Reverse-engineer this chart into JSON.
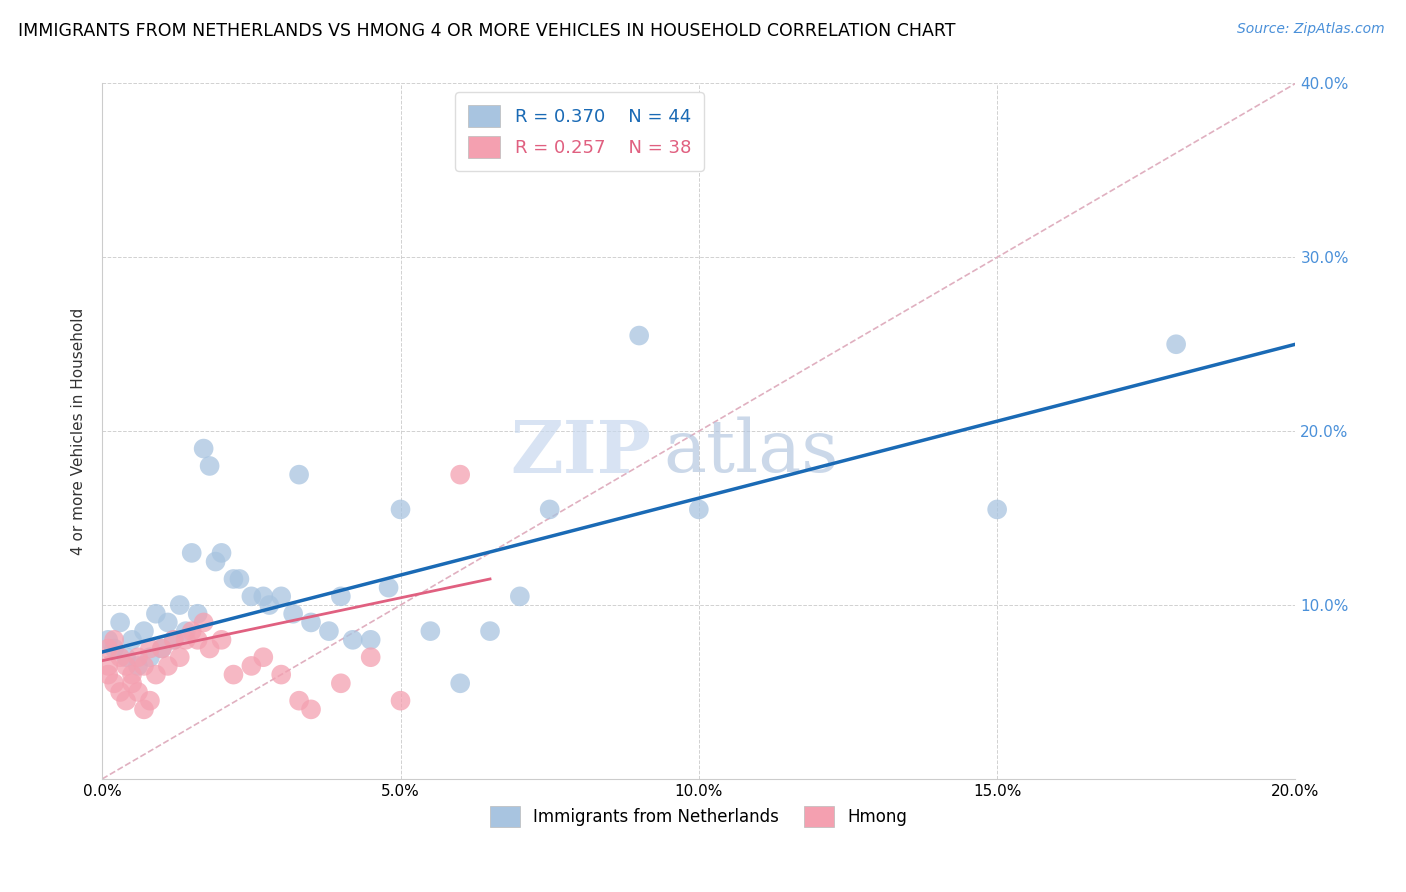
{
  "title": "IMMIGRANTS FROM NETHERLANDS VS HMONG 4 OR MORE VEHICLES IN HOUSEHOLD CORRELATION CHART",
  "source": "Source: ZipAtlas.com",
  "ylabel": "4 or more Vehicles in Household",
  "xlim": [
    0.0,
    0.2
  ],
  "ylim": [
    0.0,
    0.4
  ],
  "xticks": [
    0.0,
    0.05,
    0.1,
    0.15,
    0.2
  ],
  "yticks": [
    0.0,
    0.1,
    0.2,
    0.3,
    0.4
  ],
  "xtick_labels": [
    "0.0%",
    "5.0%",
    "10.0%",
    "15.0%",
    "20.0%"
  ],
  "ytick_labels_right": [
    "",
    "10.0%",
    "20.0%",
    "30.0%",
    "40.0%"
  ],
  "legend_label1": "Immigrants from Netherlands",
  "legend_label2": "Hmong",
  "R1": 0.37,
  "N1": 44,
  "R2": 0.257,
  "N2": 38,
  "color1": "#a8c4e0",
  "color2": "#f4a0b0",
  "line_color1": "#1a6ab5",
  "line_color2": "#e06080",
  "diagonal_color": "#e0b0c0",
  "watermark_zip": "ZIP",
  "watermark_atlas": "atlas",
  "scatter1_x": [
    0.001,
    0.002,
    0.003,
    0.004,
    0.005,
    0.006,
    0.007,
    0.008,
    0.009,
    0.01,
    0.011,
    0.012,
    0.013,
    0.014,
    0.015,
    0.016,
    0.017,
    0.018,
    0.019,
    0.02,
    0.022,
    0.023,
    0.025,
    0.027,
    0.028,
    0.03,
    0.032,
    0.033,
    0.035,
    0.038,
    0.04,
    0.042,
    0.045,
    0.048,
    0.05,
    0.055,
    0.06,
    0.065,
    0.07,
    0.075,
    0.09,
    0.1,
    0.15,
    0.18
  ],
  "scatter1_y": [
    0.08,
    0.075,
    0.09,
    0.07,
    0.08,
    0.065,
    0.085,
    0.07,
    0.095,
    0.075,
    0.09,
    0.08,
    0.1,
    0.085,
    0.13,
    0.095,
    0.19,
    0.18,
    0.125,
    0.13,
    0.115,
    0.115,
    0.105,
    0.105,
    0.1,
    0.105,
    0.095,
    0.175,
    0.09,
    0.085,
    0.105,
    0.08,
    0.08,
    0.11,
    0.155,
    0.085,
    0.055,
    0.085,
    0.105,
    0.155,
    0.255,
    0.155,
    0.155,
    0.25
  ],
  "scatter2_x": [
    0.001,
    0.001,
    0.001,
    0.002,
    0.002,
    0.003,
    0.003,
    0.004,
    0.004,
    0.005,
    0.005,
    0.006,
    0.006,
    0.007,
    0.007,
    0.008,
    0.008,
    0.009,
    0.01,
    0.011,
    0.012,
    0.013,
    0.014,
    0.015,
    0.016,
    0.017,
    0.018,
    0.02,
    0.022,
    0.025,
    0.027,
    0.03,
    0.033,
    0.035,
    0.04,
    0.045,
    0.05,
    0.06
  ],
  "scatter2_y": [
    0.075,
    0.065,
    0.06,
    0.08,
    0.055,
    0.07,
    0.05,
    0.065,
    0.045,
    0.06,
    0.055,
    0.07,
    0.05,
    0.065,
    0.04,
    0.075,
    0.045,
    0.06,
    0.075,
    0.065,
    0.08,
    0.07,
    0.08,
    0.085,
    0.08,
    0.09,
    0.075,
    0.08,
    0.06,
    0.065,
    0.07,
    0.06,
    0.045,
    0.04,
    0.055,
    0.07,
    0.045,
    0.175
  ],
  "trend1_x": [
    0.0,
    0.2
  ],
  "trend1_y": [
    0.073,
    0.25
  ],
  "trend2_x": [
    0.0,
    0.065
  ],
  "trend2_y": [
    0.068,
    0.115
  ]
}
